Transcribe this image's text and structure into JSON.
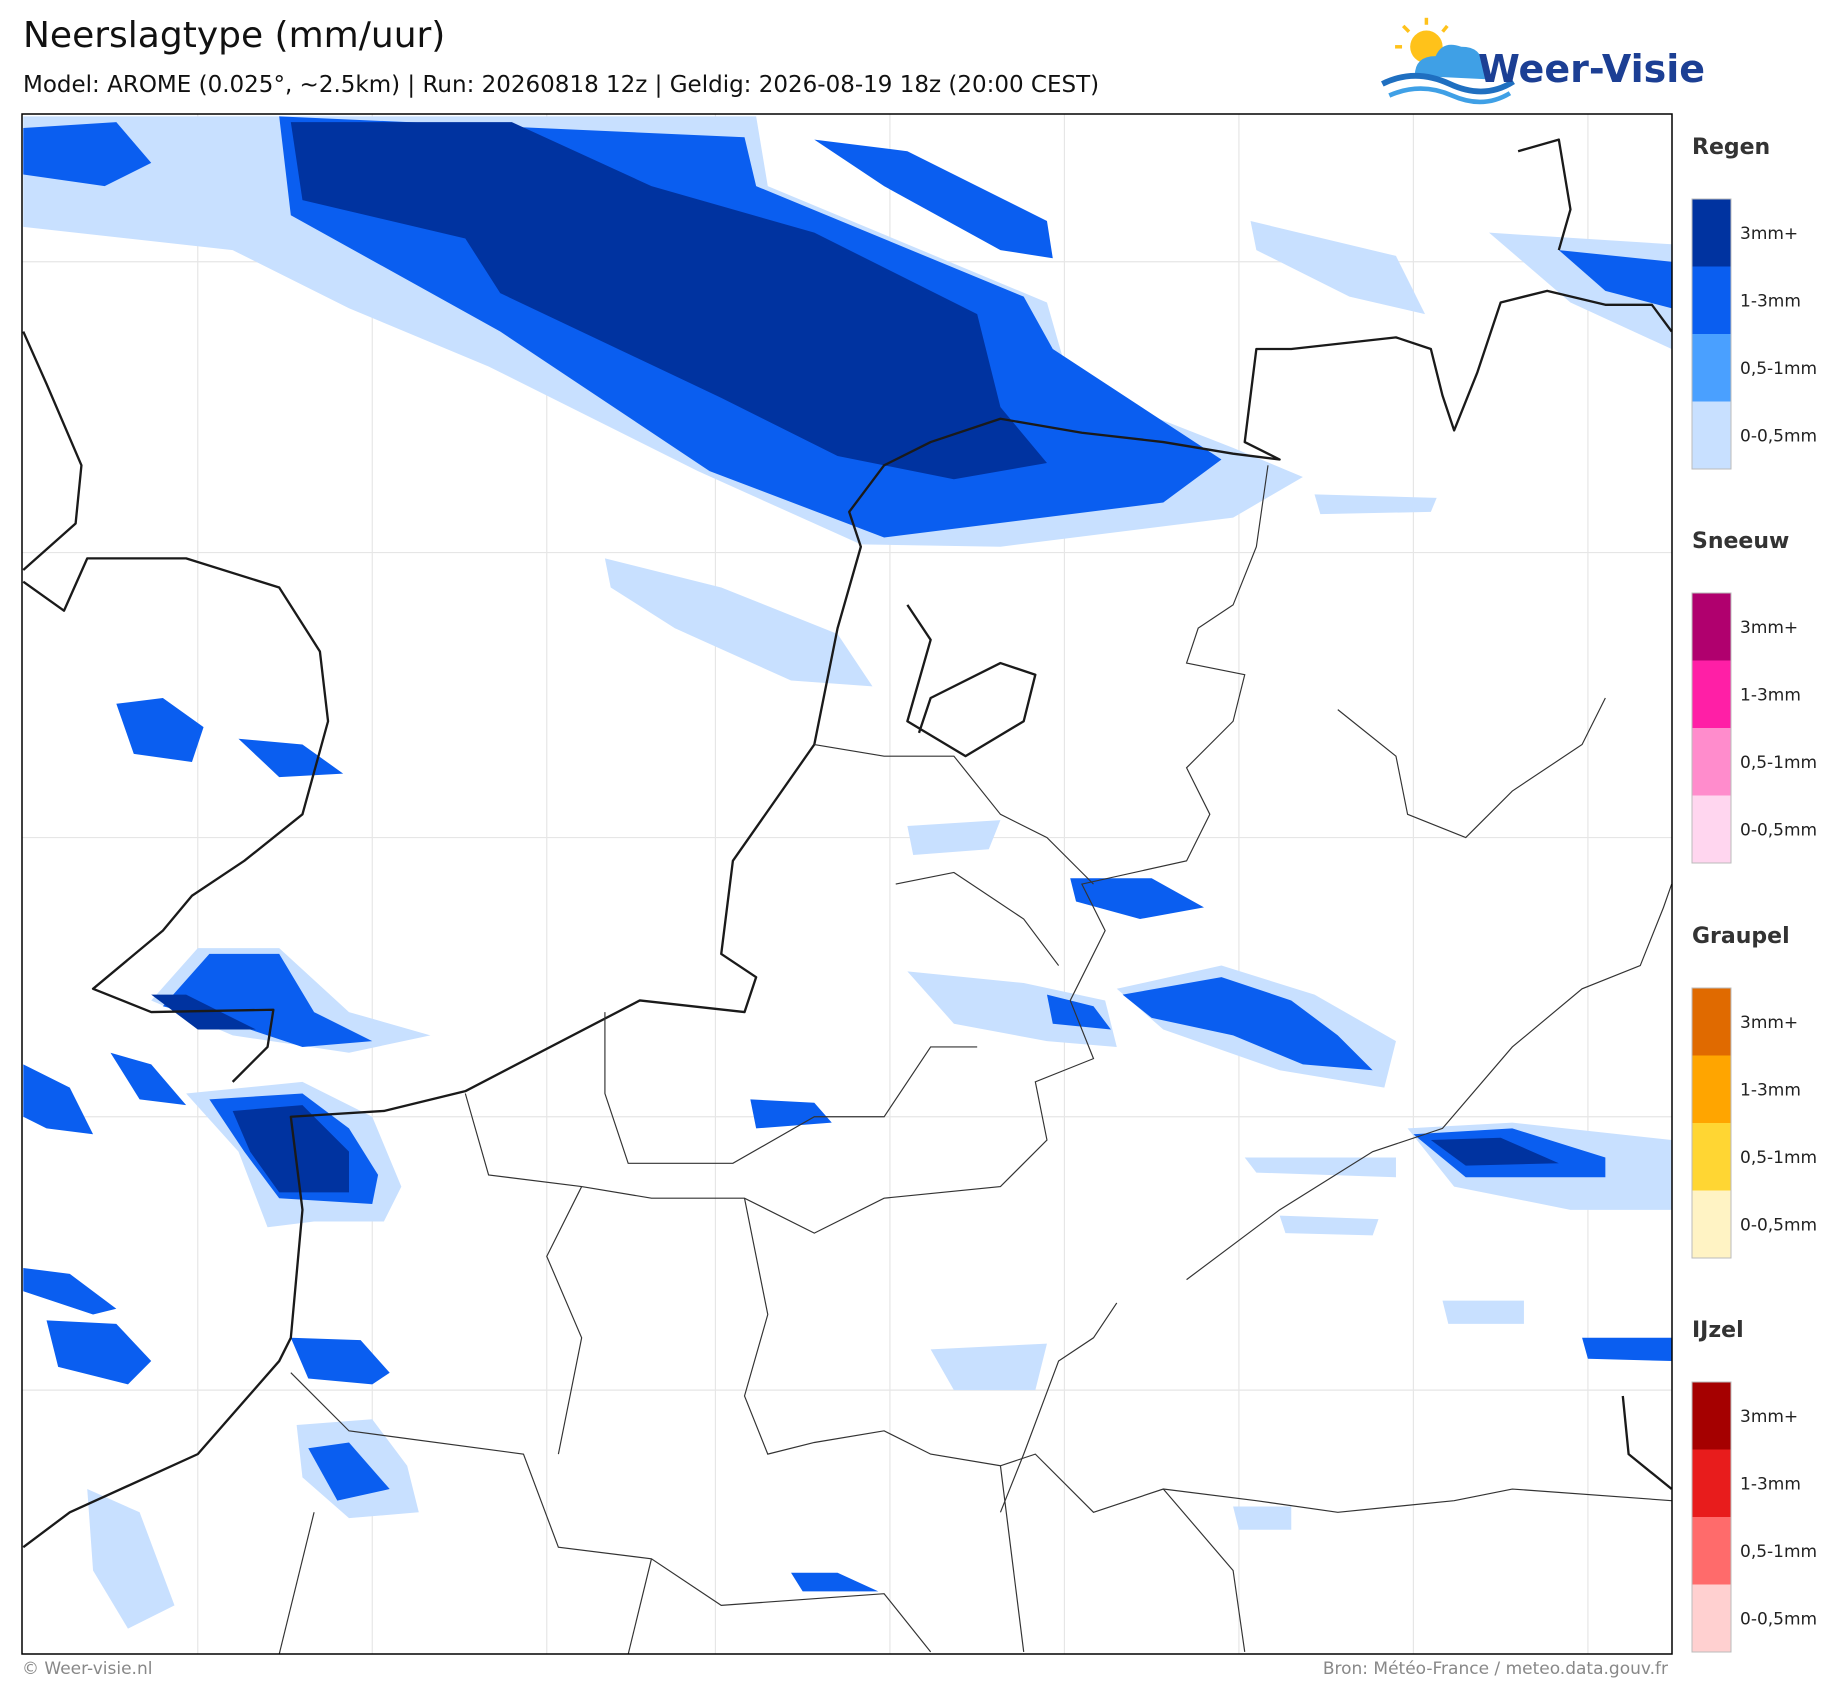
{
  "header": {
    "title": "Neerslagtype (mm/uur)",
    "subtitle": "Model: AROME (0.025°, ~2.5km)  |  Run: 20260818 12z  |  Geldig: 2026-08-19 18z (20:00 CEST)"
  },
  "logo": {
    "text": "Weer-Visie"
  },
  "legend": {
    "groups": [
      {
        "title": "Regen",
        "items": [
          {
            "label": "3mm+",
            "color": "#0033a0"
          },
          {
            "label": "1-3mm",
            "color": "#0a5ef0"
          },
          {
            "label": "0,5-1mm",
            "color": "#4aa0ff"
          },
          {
            "label": "0-0,5mm",
            "color": "#c8e0ff"
          }
        ]
      },
      {
        "title": "Sneeuw",
        "items": [
          {
            "label": "3mm+",
            "color": "#b0006e"
          },
          {
            "label": "1-3mm",
            "color": "#ff1fa6"
          },
          {
            "label": "0,5-1mm",
            "color": "#ff8ccc"
          },
          {
            "label": "0-0,5mm",
            "color": "#ffd6ef"
          }
        ]
      },
      {
        "title": "Graupel",
        "items": [
          {
            "label": "3mm+",
            "color": "#e06a00"
          },
          {
            "label": "1-3mm",
            "color": "#ffa500"
          },
          {
            "label": "0,5-1mm",
            "color": "#ffd633"
          },
          {
            "label": "0-0,5mm",
            "color": "#fff3c4"
          }
        ]
      },
      {
        "title": "IJzel",
        "items": [
          {
            "label": "3mm+",
            "color": "#a50000"
          },
          {
            "label": "1-3mm",
            "color": "#e81c1c"
          },
          {
            "label": "0,5-1mm",
            "color": "#ff6b6b"
          },
          {
            "label": "0-0,5mm",
            "color": "#ffd0d0"
          }
        ]
      }
    ]
  },
  "footer": {
    "left": "© Weer-visie.nl",
    "right": "Bron: Météo-France / meteo.data.gouv.fr"
  }
}
